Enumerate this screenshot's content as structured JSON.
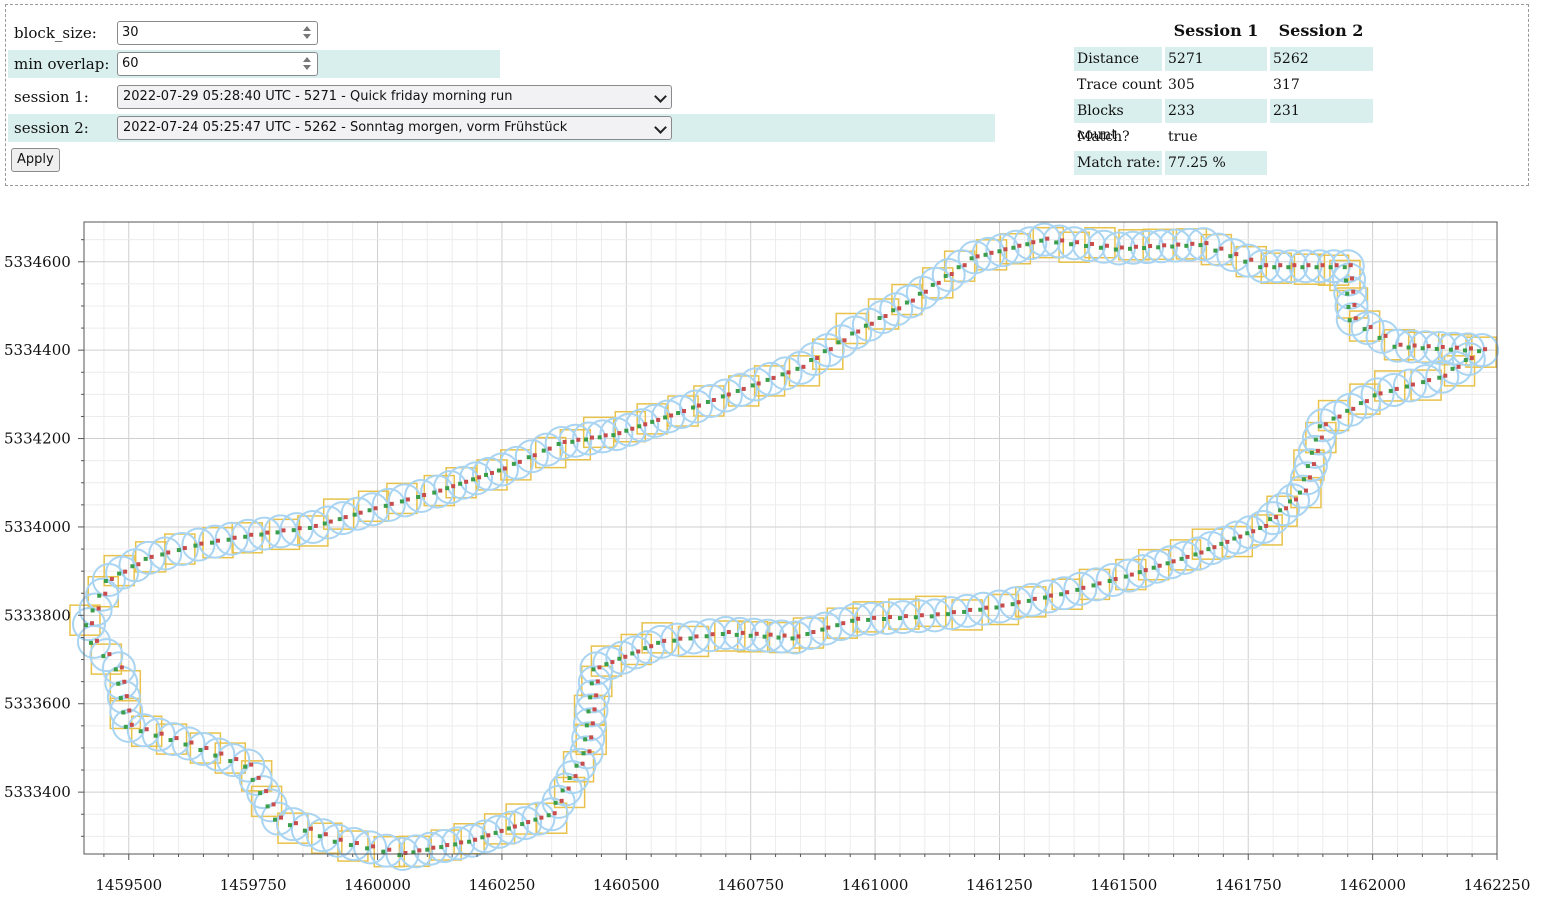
{
  "form": {
    "block_size_label": "block_size:",
    "block_size_value": "30",
    "min_overlap_label": "min overlap:",
    "min_overlap_value": "60",
    "session1_label": "session 1:",
    "session1_value": "2022-07-29 05:28:40 UTC - 5271 - Quick friday morning run",
    "session2_label": "session 2:",
    "session2_value": "2022-07-24 05:25:47 UTC - 5262 - Sonntag morgen, vorm Frühstück",
    "apply_label": "Apply"
  },
  "stats": {
    "col1": "Session 1",
    "col2": "Session 2",
    "rows": [
      {
        "label": "Distance",
        "s1": "5271",
        "s2": "5262"
      },
      {
        "label": "Trace count",
        "s1": "305",
        "s2": "317"
      },
      {
        "label": "Blocks count",
        "s1": "233",
        "s2": "231"
      },
      {
        "label": "Match?",
        "s1": "true",
        "s2": ""
      },
      {
        "label": "Match rate:",
        "s1": "77.25 %",
        "s2": ""
      }
    ]
  },
  "colors": {
    "band": "#d9efee",
    "circle": "#a9d4f2",
    "block": "#e8c24a",
    "trace1": "#c94c4c",
    "trace2": "#3a9e4a",
    "grid": "#d6d6d6"
  },
  "chart_data": {
    "type": "scatter",
    "title": "",
    "xlabel": "",
    "ylabel": "",
    "xlim": [
      1459410,
      1462250
    ],
    "ylim": [
      5333260,
      5334690
    ],
    "x_ticks": [
      "1459500",
      "1459750",
      "1460000",
      "1460250",
      "1460500",
      "1460750",
      "1461000",
      "1461250",
      "1461500",
      "1461750",
      "1462000",
      "1462250"
    ],
    "y_ticks": [
      "5333400",
      "5333600",
      "5333800",
      "5334000",
      "5334200",
      "5334400",
      "5334600"
    ],
    "grid": true,
    "series": [
      {
        "points": [
          [
            1459420,
            5333780
          ],
          [
            1459460,
            5333880
          ],
          [
            1459540,
            5333930
          ],
          [
            1459640,
            5333960
          ],
          [
            1459740,
            5333980
          ],
          [
            1459870,
            5334000
          ],
          [
            1459990,
            5334040
          ],
          [
            1460120,
            5334080
          ],
          [
            1460250,
            5334130
          ],
          [
            1460370,
            5334190
          ],
          [
            1460480,
            5334210
          ],
          [
            1460610,
            5334260
          ],
          [
            1460730,
            5334310
          ],
          [
            1460850,
            5334360
          ],
          [
            1460960,
            5334440
          ],
          [
            1461070,
            5334510
          ],
          [
            1461200,
            5334610
          ],
          [
            1461340,
            5334650
          ],
          [
            1461490,
            5334630
          ],
          [
            1461660,
            5334640
          ],
          [
            1461780,
            5334590
          ],
          [
            1461950,
            5334590
          ],
          [
            1461960,
            5334470
          ],
          [
            1462050,
            5334410
          ],
          [
            1462220,
            5334400
          ],
          [
            1462140,
            5334340
          ],
          [
            1462010,
            5334300
          ],
          [
            1461900,
            5334230
          ],
          [
            1461860,
            5334080
          ],
          [
            1461780,
            5334000
          ],
          [
            1461650,
            5333940
          ],
          [
            1461510,
            5333890
          ],
          [
            1461380,
            5333850
          ],
          [
            1461250,
            5333820
          ],
          [
            1461120,
            5333800
          ],
          [
            1460960,
            5333790
          ],
          [
            1460840,
            5333750
          ],
          [
            1460700,
            5333760
          ],
          [
            1460570,
            5333740
          ],
          [
            1460440,
            5333680
          ],
          [
            1460420,
            5333490
          ],
          [
            1460350,
            5333350
          ],
          [
            1460190,
            5333290
          ],
          [
            1460050,
            5333260
          ],
          [
            1459920,
            5333290
          ],
          [
            1459800,
            5333340
          ],
          [
            1459740,
            5333460
          ],
          [
            1459620,
            5333510
          ],
          [
            1459500,
            5333550
          ],
          [
            1459480,
            5333680
          ],
          [
            1459430,
            5333740
          ]
        ]
      }
    ]
  }
}
